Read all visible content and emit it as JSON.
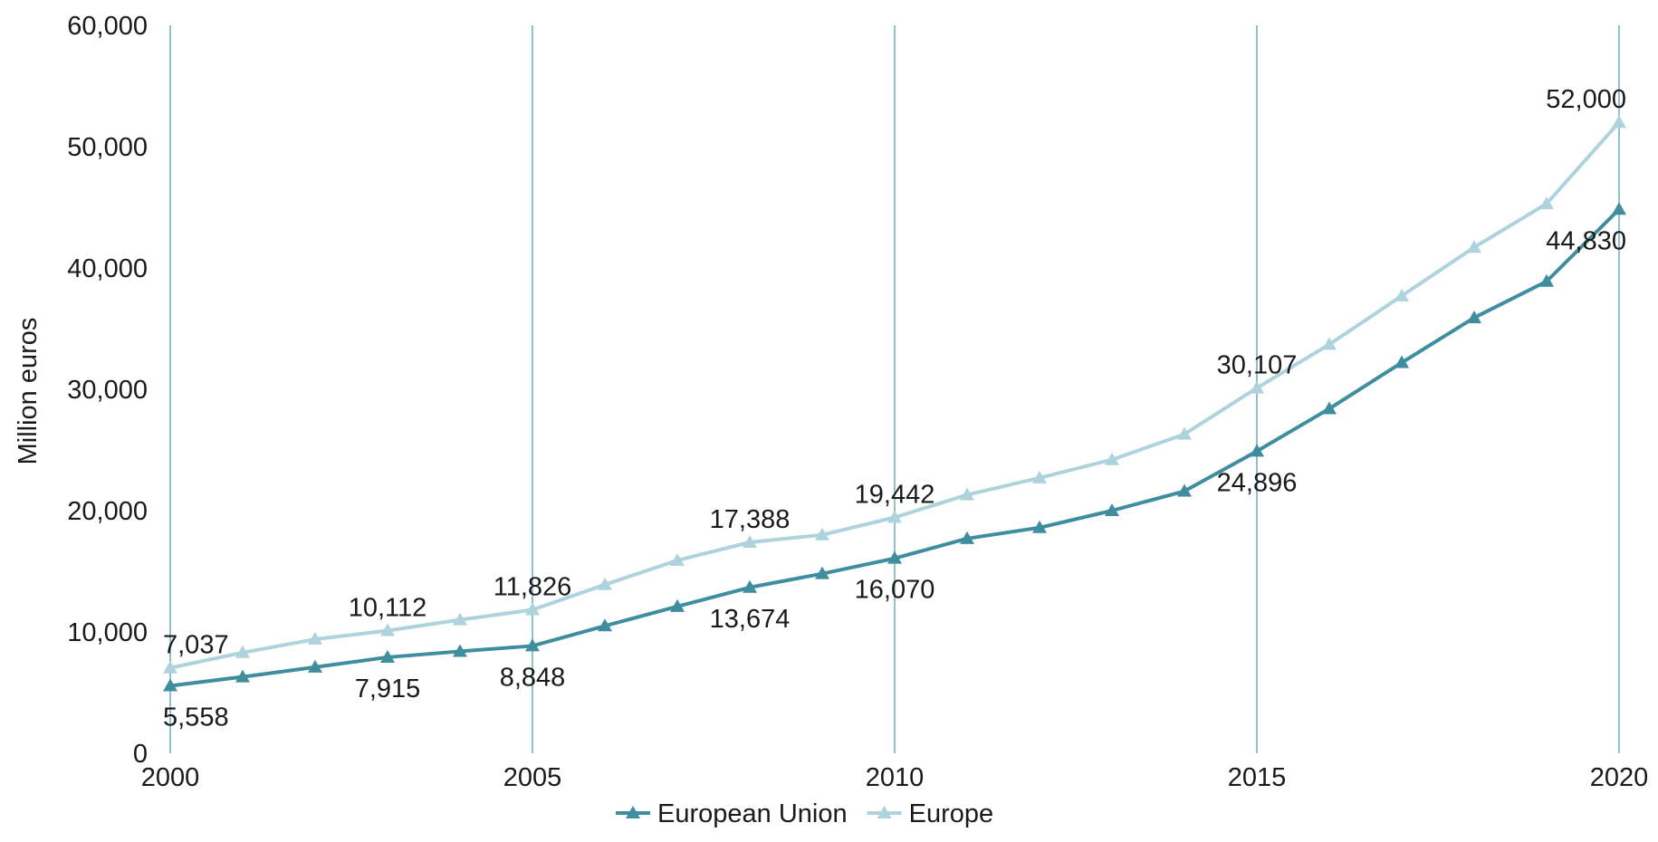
{
  "chart_data": {
    "type": "line",
    "title": "",
    "xlabel": "",
    "ylabel": "Million euros",
    "x": [
      2000,
      2001,
      2002,
      2003,
      2004,
      2005,
      2006,
      2007,
      2008,
      2009,
      2010,
      2011,
      2012,
      2013,
      2014,
      2015,
      2016,
      2017,
      2018,
      2019,
      2020
    ],
    "xticks": [
      "2000",
      "2005",
      "2010",
      "2015",
      "2020"
    ],
    "yticks": [
      "0",
      "10,000",
      "20,000",
      "30,000",
      "40,000",
      "50,000",
      "60,000"
    ],
    "ylim": [
      0,
      60000
    ],
    "xlim": [
      2000,
      2020
    ],
    "grid": "vertical at x ticks",
    "legend_position": "bottom-center",
    "series": [
      {
        "name": "European Union",
        "color": "#3e8ea0",
        "marker": "triangle",
        "values": [
          5558,
          6300,
          7100,
          7915,
          8400,
          8848,
          10500,
          12100,
          13674,
          14800,
          16070,
          17700,
          18600,
          20000,
          21600,
          24896,
          28400,
          32200,
          35900,
          38900,
          44830
        ],
        "labels": [
          {
            "x": 2000,
            "text": "5,558",
            "pos": "below"
          },
          {
            "x": 2003,
            "text": "7,915",
            "pos": "below"
          },
          {
            "x": 2005,
            "text": "8,848",
            "pos": "below"
          },
          {
            "x": 2008,
            "text": "13,674",
            "pos": "below"
          },
          {
            "x": 2010,
            "text": "16,070",
            "pos": "below"
          },
          {
            "x": 2015,
            "text": "24,896",
            "pos": "below"
          },
          {
            "x": 2020,
            "text": "44,830",
            "pos": "below"
          }
        ]
      },
      {
        "name": "Europe",
        "color": "#aed3dd",
        "marker": "triangle",
        "values": [
          7037,
          8300,
          9400,
          10112,
          11000,
          11826,
          13900,
          15900,
          17388,
          18000,
          19442,
          21300,
          22700,
          24200,
          26300,
          30107,
          33700,
          37700,
          41700,
          45300,
          52000
        ],
        "labels": [
          {
            "x": 2000,
            "text": "7,037",
            "pos": "above"
          },
          {
            "x": 2003,
            "text": "10,112",
            "pos": "above"
          },
          {
            "x": 2005,
            "text": "11,826",
            "pos": "above"
          },
          {
            "x": 2008,
            "text": "17,388",
            "pos": "above"
          },
          {
            "x": 2010,
            "text": "19,442",
            "pos": "above"
          },
          {
            "x": 2015,
            "text": "30,107",
            "pos": "above"
          },
          {
            "x": 2020,
            "text": "52,000",
            "pos": "above"
          }
        ]
      }
    ]
  }
}
